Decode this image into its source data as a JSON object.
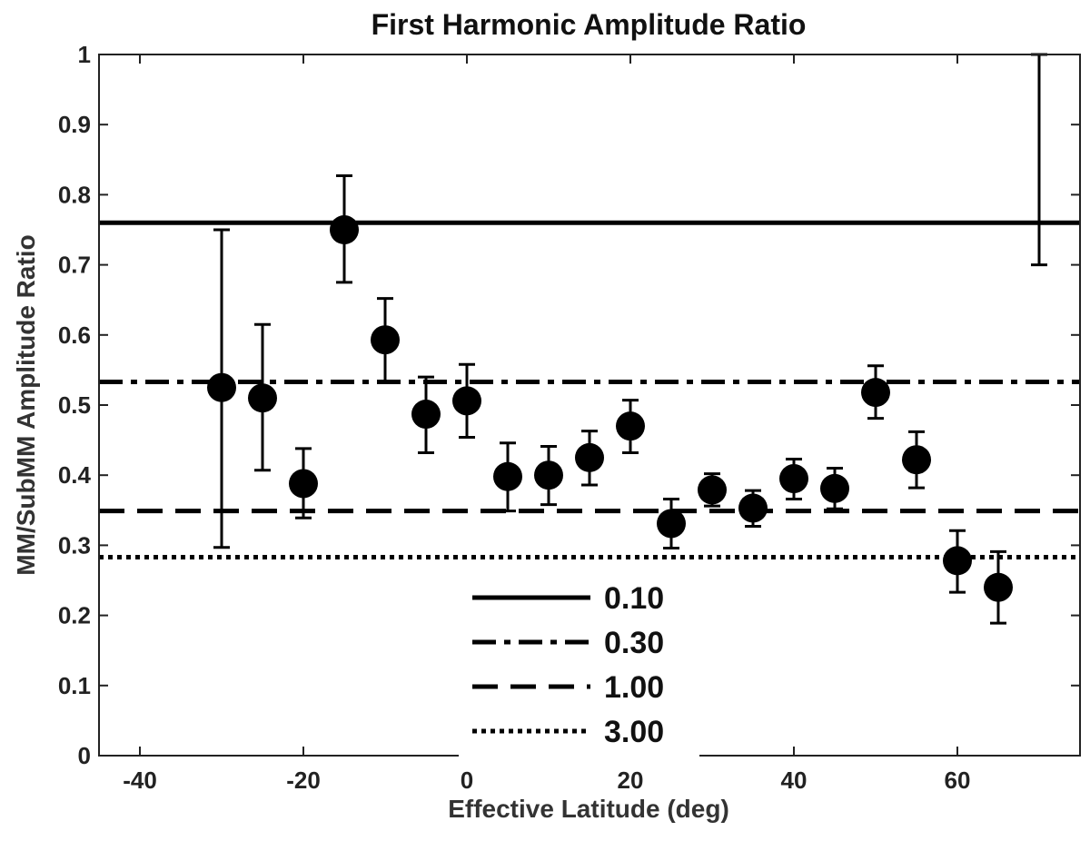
{
  "chart_data": {
    "type": "scatter",
    "title": "First Harmonic Amplitude Ratio",
    "xlabel": "Effective Latitude (deg)",
    "ylabel": "MM/SubMM Amplitude Ratio",
    "xlim": [
      -45,
      75
    ],
    "ylim": [
      0,
      1
    ],
    "xticks": [
      -40,
      -20,
      0,
      20,
      40,
      60
    ],
    "yticks": [
      0,
      0.1,
      0.2,
      0.3,
      0.4,
      0.5,
      0.6,
      0.7,
      0.8,
      0.9,
      1
    ],
    "xtick_labels": [
      "-40",
      "-20",
      "0",
      "20",
      "40",
      "60"
    ],
    "ytick_labels": [
      "0",
      "0.1",
      "0.2",
      "0.3",
      "0.4",
      "0.5",
      "0.6",
      "0.7",
      "0.8",
      "0.9",
      "1"
    ],
    "grid": false,
    "points": [
      {
        "x": -30,
        "y": 0.525,
        "ylow": 0.297,
        "yhigh": 0.75
      },
      {
        "x": -25,
        "y": 0.51,
        "ylow": 0.407,
        "yhigh": 0.615
      },
      {
        "x": -20,
        "y": 0.388,
        "ylow": 0.339,
        "yhigh": 0.438
      },
      {
        "x": -15,
        "y": 0.75,
        "ylow": 0.675,
        "yhigh": 0.827
      },
      {
        "x": -10,
        "y": 0.593,
        "ylow": 0.533,
        "yhigh": 0.652
      },
      {
        "x": -5,
        "y": 0.487,
        "ylow": 0.432,
        "yhigh": 0.54
      },
      {
        "x": 0,
        "y": 0.506,
        "ylow": 0.454,
        "yhigh": 0.558
      },
      {
        "x": 5,
        "y": 0.398,
        "ylow": 0.349,
        "yhigh": 0.446
      },
      {
        "x": 10,
        "y": 0.4,
        "ylow": 0.358,
        "yhigh": 0.441
      },
      {
        "x": 15,
        "y": 0.425,
        "ylow": 0.386,
        "yhigh": 0.463
      },
      {
        "x": 20,
        "y": 0.47,
        "ylow": 0.432,
        "yhigh": 0.507
      },
      {
        "x": 25,
        "y": 0.331,
        "ylow": 0.296,
        "yhigh": 0.366
      },
      {
        "x": 30,
        "y": 0.379,
        "ylow": 0.356,
        "yhigh": 0.402
      },
      {
        "x": 35,
        "y": 0.353,
        "ylow": 0.327,
        "yhigh": 0.378
      },
      {
        "x": 40,
        "y": 0.395,
        "ylow": 0.366,
        "yhigh": 0.423
      },
      {
        "x": 45,
        "y": 0.381,
        "ylow": 0.352,
        "yhigh": 0.41
      },
      {
        "x": 50,
        "y": 0.518,
        "ylow": 0.481,
        "yhigh": 0.556
      },
      {
        "x": 55,
        "y": 0.422,
        "ylow": 0.382,
        "yhigh": 0.462
      },
      {
        "x": 60,
        "y": 0.278,
        "ylow": 0.233,
        "yhigh": 0.321
      },
      {
        "x": 65,
        "y": 0.24,
        "ylow": 0.189,
        "yhigh": 0.291
      },
      {
        "x": 70,
        "y": null,
        "ylow": 0.7,
        "yhigh": 1.0
      }
    ],
    "reference_lines": [
      {
        "name": "0.10",
        "y": 0.76,
        "style": "solid"
      },
      {
        "name": "0.30",
        "y": 0.533,
        "style": "dashdot"
      },
      {
        "name": "1.00",
        "y": 0.349,
        "style": "dashed"
      },
      {
        "name": "3.00",
        "y": 0.283,
        "style": "dotted"
      }
    ],
    "legend_position": "bottom-center"
  }
}
